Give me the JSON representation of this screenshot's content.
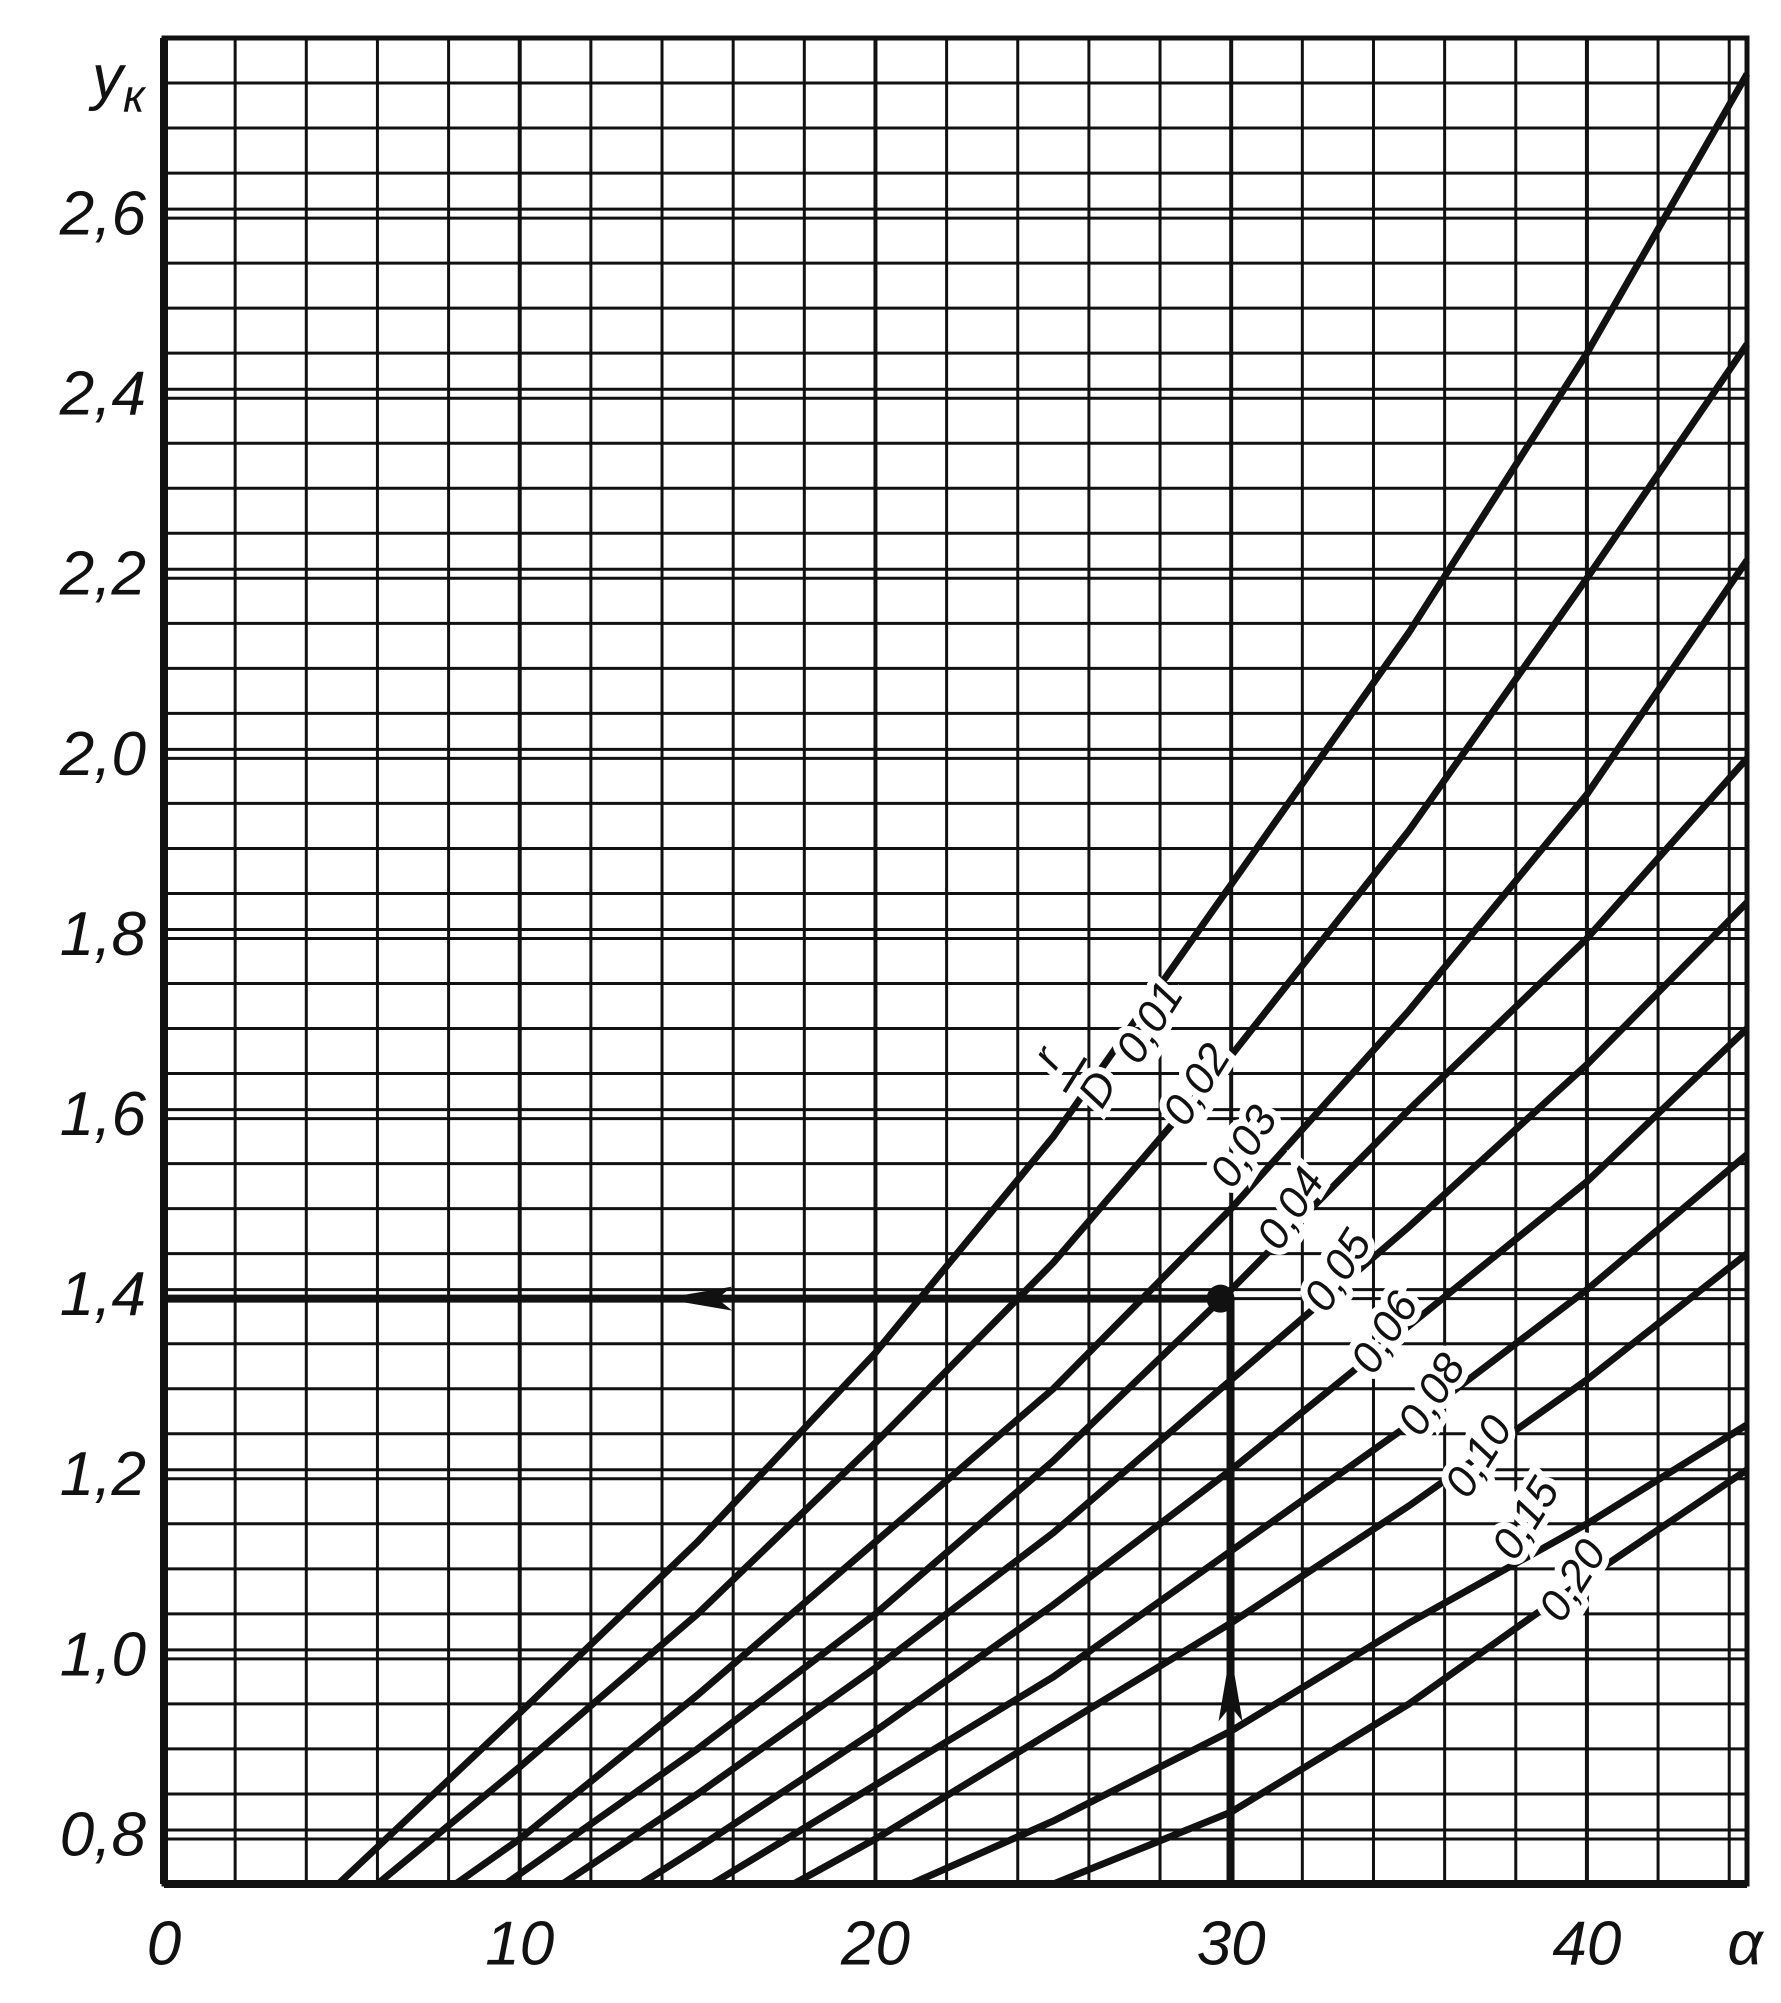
{
  "chart_data": {
    "type": "line",
    "y_label": {
      "main": "y",
      "subscript": "к"
    },
    "x_label": "α",
    "curve_label": {
      "numerator": "r",
      "denominator": "D"
    },
    "xlim": [
      0,
      44.5
    ],
    "ylim": [
      0.75,
      2.8
    ],
    "xticks": [
      0,
      10,
      20,
      30,
      40
    ],
    "yticks": [
      {
        "value": 0.8,
        "label": "0,8"
      },
      {
        "value": 1.0,
        "label": "1,0"
      },
      {
        "value": 1.2,
        "label": "1,2"
      },
      {
        "value": 1.4,
        "label": "1,4"
      },
      {
        "value": 1.6,
        "label": "1,6"
      },
      {
        "value": 1.8,
        "label": "1,8"
      },
      {
        "value": 2.0,
        "label": "2,0"
      },
      {
        "value": 2.2,
        "label": "2,2"
      },
      {
        "value": 2.4,
        "label": "2,4"
      },
      {
        "value": 2.6,
        "label": "2,6"
      }
    ],
    "grid": true,
    "color": "#111111",
    "series": [
      {
        "name": "0,01",
        "x": [
          4.9,
          10,
          15,
          20,
          25,
          30,
          35,
          40,
          44.5
        ],
        "values": [
          0.75,
          0.94,
          1.13,
          1.34,
          1.58,
          1.86,
          2.14,
          2.45,
          2.76
        ]
      },
      {
        "name": "0,02",
        "x": [
          6,
          10,
          15,
          20,
          25,
          30,
          35,
          40,
          44.5
        ],
        "values": [
          0.75,
          0.88,
          1.05,
          1.24,
          1.44,
          1.67,
          1.92,
          2.2,
          2.46
        ]
      },
      {
        "name": "0,03",
        "x": [
          8.2,
          10,
          15,
          20,
          25,
          30,
          35,
          40,
          44.5
        ],
        "values": [
          0.75,
          0.8,
          0.96,
          1.13,
          1.3,
          1.5,
          1.72,
          1.96,
          2.22
        ]
      },
      {
        "name": "0,04",
        "x": [
          9.6,
          15,
          20,
          25,
          30,
          35,
          40,
          44.5
        ],
        "values": [
          0.75,
          0.9,
          1.05,
          1.22,
          1.41,
          1.61,
          1.8,
          2.0
        ]
      },
      {
        "name": "0,05",
        "x": [
          11.2,
          15,
          20,
          25,
          30,
          35,
          40,
          44.5
        ],
        "values": [
          0.75,
          0.85,
          0.99,
          1.14,
          1.31,
          1.48,
          1.66,
          1.84
        ]
      },
      {
        "name": "0,06",
        "x": [
          13.4,
          15,
          20,
          25,
          30,
          35,
          40,
          44.5
        ],
        "values": [
          0.75,
          0.79,
          0.92,
          1.06,
          1.21,
          1.37,
          1.53,
          1.7
        ]
      },
      {
        "name": "0,08",
        "x": [
          15.4,
          20,
          25,
          30,
          35,
          40,
          44.5
        ],
        "values": [
          0.75,
          0.86,
          0.98,
          1.12,
          1.26,
          1.41,
          1.56
        ]
      },
      {
        "name": "0,10",
        "x": [
          17.7,
          20,
          25,
          30,
          35,
          40,
          44.5
        ],
        "values": [
          0.75,
          0.8,
          0.92,
          1.04,
          1.17,
          1.31,
          1.45
        ]
      },
      {
        "name": "0,15",
        "x": [
          21,
          25,
          30,
          35,
          40,
          44.5
        ],
        "values": [
          0.75,
          0.82,
          0.92,
          1.04,
          1.15,
          1.26
        ]
      },
      {
        "name": "0,20",
        "x": [
          25,
          30,
          35,
          40,
          44.5
        ],
        "values": [
          0.75,
          0.83,
          0.95,
          1.09,
          1.21
        ]
      }
    ],
    "example_point": {
      "x": 29.7,
      "y": 1.4
    }
  }
}
